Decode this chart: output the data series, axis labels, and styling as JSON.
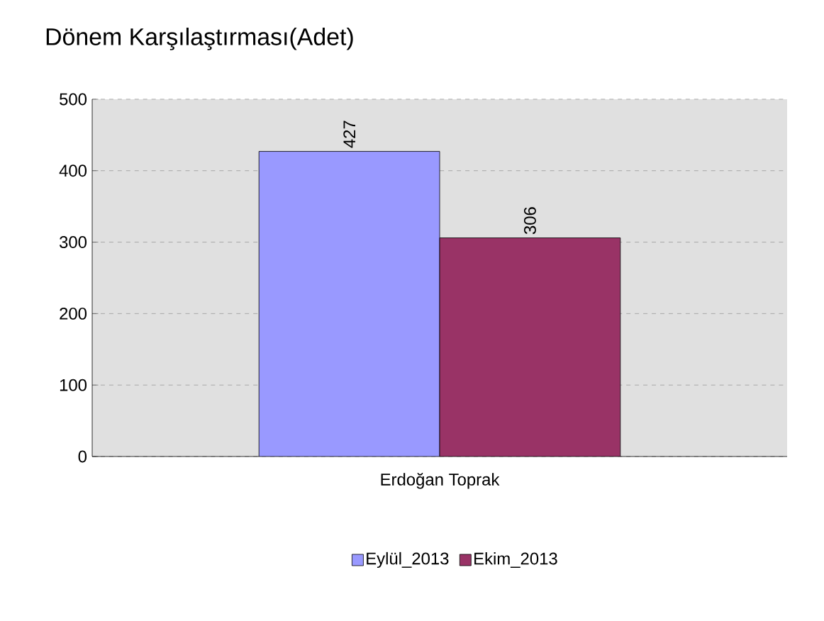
{
  "chart_data": {
    "type": "bar",
    "title": "Dönem Karşılaştırması(Adet)",
    "categories": [
      "Erdoğan Toprak"
    ],
    "series": [
      {
        "name": "Eylül_2013",
        "color": "#9999ff",
        "values": [
          427
        ],
        "value_labels": [
          "427"
        ]
      },
      {
        "name": "Ekim_2013",
        "color": "#993366",
        "values": [
          306
        ],
        "value_labels": [
          "306"
        ]
      }
    ],
    "ylim": [
      0,
      500
    ],
    "yticks": [
      0,
      100,
      200,
      300,
      400,
      500
    ],
    "grid": "y",
    "legend": "bottom"
  }
}
